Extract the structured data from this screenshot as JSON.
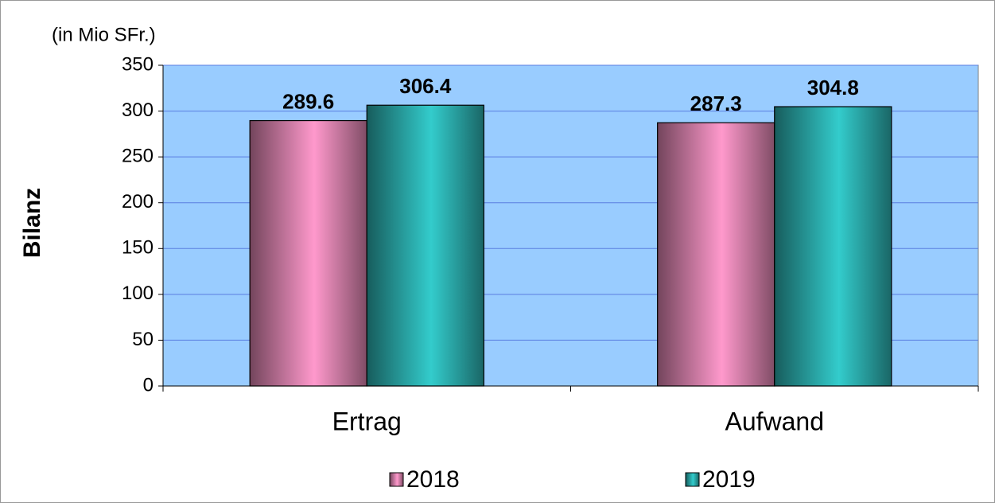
{
  "chart_data": {
    "type": "bar",
    "y_unit_label": "(in Mio SFr.)",
    "ylabel": "Bilanz",
    "categories": [
      "Ertrag",
      "Aufwand"
    ],
    "series": [
      {
        "name": "2018",
        "color": "#ff99cc",
        "values": [
          289.6,
          287.3
        ]
      },
      {
        "name": "2019",
        "color": "#33cccc",
        "values": [
          306.4,
          304.8
        ]
      }
    ],
    "ylim": [
      0,
      350
    ],
    "yticks": [
      0,
      50,
      100,
      150,
      200,
      250,
      300,
      350
    ],
    "grid": true,
    "plot_background": "#99ccff",
    "legend": "bottom"
  }
}
